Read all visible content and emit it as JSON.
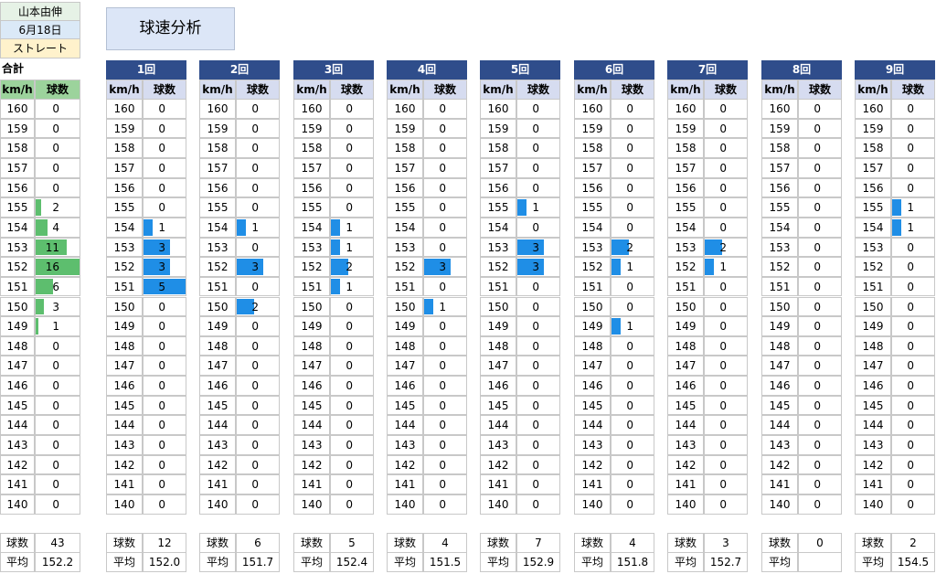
{
  "player": {
    "name": "山本由伸",
    "date": "6月18日",
    "pitch_type": "ストレート"
  },
  "title": "球速分析",
  "colors": {
    "header_navy": "#2f4d8b",
    "header_light": "#d6dcf0",
    "total_header": "#9cd39c",
    "inning_bar": "#1f8ee6",
    "total_bar": "#5dbe6e",
    "name_bg": "#e6f2e6",
    "date_bg": "#dbe9f7",
    "type_bg": "#fff2cc"
  },
  "speed_col_label": "km/h",
  "count_col_label": "球数",
  "summary_labels": {
    "count": "球数",
    "avg": "平均"
  },
  "speeds": [
    "160",
    "159",
    "158",
    "157",
    "156",
    "155",
    "154",
    "153",
    "152",
    "151",
    "150",
    "149",
    "148",
    "147",
    "146",
    "145",
    "144",
    "143",
    "142",
    "141",
    "140"
  ],
  "total": {
    "label": "合計",
    "counts": [
      "0",
      "0",
      "0",
      "0",
      "0",
      "2",
      "4",
      "11",
      "16",
      "6",
      "3",
      "1",
      "0",
      "0",
      "0",
      "0",
      "0",
      "0",
      "0",
      "0",
      "0"
    ],
    "count": "43",
    "avg": "152.2"
  },
  "innings": [
    {
      "label": "1回",
      "counts": [
        "0",
        "0",
        "0",
        "0",
        "0",
        "0",
        "1",
        "3",
        "3",
        "5",
        "0",
        "0",
        "0",
        "0",
        "0",
        "0",
        "0",
        "0",
        "0",
        "0",
        "0"
      ],
      "count": "12",
      "avg": "152.0"
    },
    {
      "label": "2回",
      "counts": [
        "0",
        "0",
        "0",
        "0",
        "0",
        "0",
        "1",
        "0",
        "3",
        "0",
        "2",
        "0",
        "0",
        "0",
        "0",
        "0",
        "0",
        "0",
        "0",
        "0",
        "0"
      ],
      "count": "6",
      "avg": "151.7"
    },
    {
      "label": "3回",
      "counts": [
        "0",
        "0",
        "0",
        "0",
        "0",
        "0",
        "1",
        "1",
        "2",
        "1",
        "0",
        "0",
        "0",
        "0",
        "0",
        "0",
        "0",
        "0",
        "0",
        "0",
        "0"
      ],
      "count": "5",
      "avg": "152.4"
    },
    {
      "label": "4回",
      "counts": [
        "0",
        "0",
        "0",
        "0",
        "0",
        "0",
        "0",
        "0",
        "3",
        "0",
        "1",
        "0",
        "0",
        "0",
        "0",
        "0",
        "0",
        "0",
        "0",
        "0",
        "0"
      ],
      "count": "4",
      "avg": "151.5"
    },
    {
      "label": "5回",
      "counts": [
        "0",
        "0",
        "0",
        "0",
        "0",
        "1",
        "0",
        "3",
        "3",
        "0",
        "0",
        "0",
        "0",
        "0",
        "0",
        "0",
        "0",
        "0",
        "0",
        "0",
        "0"
      ],
      "count": "7",
      "avg": "152.9"
    },
    {
      "label": "6回",
      "counts": [
        "0",
        "0",
        "0",
        "0",
        "0",
        "0",
        "0",
        "2",
        "1",
        "0",
        "0",
        "1",
        "0",
        "0",
        "0",
        "0",
        "0",
        "0",
        "0",
        "0",
        "0"
      ],
      "count": "4",
      "avg": "151.8"
    },
    {
      "label": "7回",
      "counts": [
        "0",
        "0",
        "0",
        "0",
        "0",
        "0",
        "0",
        "2",
        "1",
        "0",
        "0",
        "0",
        "0",
        "0",
        "0",
        "0",
        "0",
        "0",
        "0",
        "0",
        "0"
      ],
      "count": "3",
      "avg": "152.7"
    },
    {
      "label": "8回",
      "counts": [
        "0",
        "0",
        "0",
        "0",
        "0",
        "0",
        "0",
        "0",
        "0",
        "0",
        "0",
        "0",
        "0",
        "0",
        "0",
        "0",
        "0",
        "0",
        "0",
        "0",
        "0"
      ],
      "count": "0",
      "avg": ""
    },
    {
      "label": "9回",
      "counts": [
        "0",
        "0",
        "0",
        "0",
        "0",
        "1",
        "1",
        "0",
        "0",
        "0",
        "0",
        "0",
        "0",
        "0",
        "0",
        "0",
        "0",
        "0",
        "0",
        "0",
        "0"
      ],
      "count": "2",
      "avg": "154.5"
    }
  ]
}
